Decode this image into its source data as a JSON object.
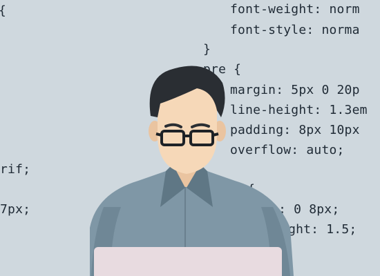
{
  "background_color": "#cfd8de",
  "code_color": "#1f2a35",
  "code_lines": [
    "font-weight: norm",
    "font-style: norma",
    "}",
    "pre {",
    "margin: 5px 0 20p",
    "line-height: 1.3em",
    "padding: 8px 10px",
    "overflow: auto;",
    "{",
    "rif;",
    "7px;",
    "t {",
    "ng: 0 8px;",
    "eight: 1.5;"
  ],
  "illustration": {
    "subject": "person-with-glasses-at-laptop",
    "skin_color": "#f6d8b8",
    "hair_color": "#2a2e33",
    "shirt_color": "#7f97a6",
    "laptop_color": "#e8dbe0"
  }
}
